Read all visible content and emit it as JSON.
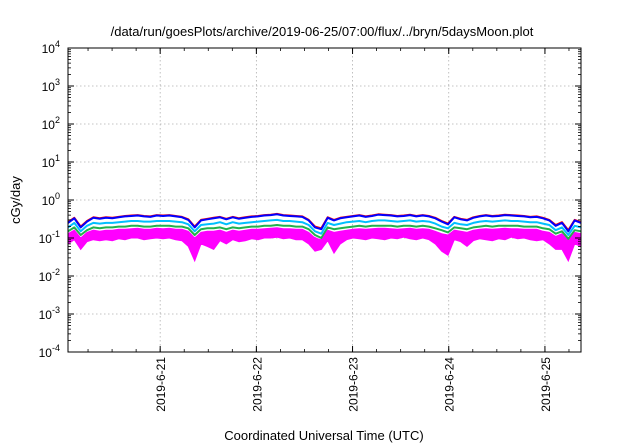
{
  "chart_data": {
    "type": "line",
    "title": "/data/run/goesPlots/archive/2019-06-25/07:00/flux/../bryn/5daysMoon.plot",
    "xlabel": "Coordinated Universal Time (UTC)",
    "ylabel": "cGy/day",
    "y_scale": "log",
    "ylim": [
      0.0001,
      10000
    ],
    "y_ticks": [
      {
        "base": "10",
        "exp": "-4"
      },
      {
        "base": "10",
        "exp": "-3"
      },
      {
        "base": "10",
        "exp": "-2"
      },
      {
        "base": "10",
        "exp": "-1"
      },
      {
        "base": "10",
        "exp": "0"
      },
      {
        "base": "10",
        "exp": "1"
      },
      {
        "base": "10",
        "exp": "2"
      },
      {
        "base": "10",
        "exp": "3"
      },
      {
        "base": "10",
        "exp": "4"
      }
    ],
    "x_range": [
      "2019-06-20 01:00",
      "2019-06-25 09:00"
    ],
    "x_ticks": [
      "2019-6-21",
      "2019-6-22",
      "2019-6-23",
      "2019-6-24",
      "2019-6-25"
    ],
    "grid": true,
    "legend": "none",
    "series": [
      {
        "color": "#ff00ff",
        "values": [
          0.085,
          0.11,
          0.07,
          0.1,
          0.11,
          0.105,
          0.11,
          0.11,
          0.125,
          0.12,
          0.125,
          0.13,
          0.12,
          0.125,
          0.13,
          0.125,
          0.13,
          0.12,
          0.125,
          0.11,
          0.1,
          0.11,
          0.1,
          0.095,
          0.12,
          0.105,
          0.12,
          0.11,
          0.115,
          0.125,
          0.12,
          0.125,
          0.13,
          0.135,
          0.125,
          0.13,
          0.12,
          0.125,
          0.11,
          0.1,
          0.075,
          0.12,
          0.09,
          0.12,
          0.125,
          0.13,
          0.125,
          0.12,
          0.13,
          0.125,
          0.12,
          0.13,
          0.125,
          0.135,
          0.125,
          0.12,
          0.13,
          0.12,
          0.11,
          0.1,
          0.1,
          0.125,
          0.12,
          0.11,
          0.12,
          0.13,
          0.125,
          0.12,
          0.13,
          0.125,
          0.14,
          0.13,
          0.135,
          0.125,
          0.12,
          0.13,
          0.11,
          0.1,
          0.1,
          0.06,
          0.11,
          0.1
        ]
      },
      {
        "color": "#ff0000",
        "values": [
          0.26,
          0.34,
          0.2,
          0.28,
          0.35,
          0.33,
          0.35,
          0.34,
          0.36,
          0.38,
          0.39,
          0.4,
          0.38,
          0.37,
          0.4,
          0.39,
          0.4,
          0.38,
          0.36,
          0.31,
          0.2,
          0.3,
          0.32,
          0.34,
          0.36,
          0.32,
          0.36,
          0.33,
          0.35,
          0.37,
          0.38,
          0.4,
          0.41,
          0.43,
          0.4,
          0.39,
          0.38,
          0.37,
          0.3,
          0.2,
          0.18,
          0.35,
          0.3,
          0.34,
          0.36,
          0.38,
          0.4,
          0.37,
          0.39,
          0.42,
          0.41,
          0.4,
          0.38,
          0.39,
          0.41,
          0.38,
          0.4,
          0.38,
          0.34,
          0.28,
          0.24,
          0.36,
          0.32,
          0.3,
          0.35,
          0.38,
          0.4,
          0.38,
          0.39,
          0.41,
          0.4,
          0.39,
          0.38,
          0.36,
          0.37,
          0.34,
          0.3,
          0.22,
          0.26,
          0.16,
          0.3,
          0.26
        ]
      },
      {
        "color": "#0000ff",
        "values": [
          0.25,
          0.33,
          0.19,
          0.27,
          0.34,
          0.32,
          0.34,
          0.33,
          0.35,
          0.37,
          0.38,
          0.39,
          0.37,
          0.36,
          0.39,
          0.38,
          0.39,
          0.37,
          0.35,
          0.3,
          0.19,
          0.29,
          0.31,
          0.33,
          0.35,
          0.31,
          0.35,
          0.32,
          0.34,
          0.36,
          0.37,
          0.39,
          0.4,
          0.42,
          0.39,
          0.38,
          0.37,
          0.36,
          0.29,
          0.19,
          0.17,
          0.34,
          0.29,
          0.33,
          0.35,
          0.37,
          0.39,
          0.36,
          0.38,
          0.41,
          0.4,
          0.39,
          0.37,
          0.38,
          0.4,
          0.37,
          0.39,
          0.37,
          0.33,
          0.27,
          0.23,
          0.35,
          0.31,
          0.29,
          0.34,
          0.37,
          0.39,
          0.37,
          0.38,
          0.4,
          0.39,
          0.38,
          0.37,
          0.35,
          0.36,
          0.33,
          0.29,
          0.21,
          0.25,
          0.15,
          0.29,
          0.25
        ]
      },
      {
        "color": "#00bfff",
        "values": [
          0.19,
          0.25,
          0.15,
          0.21,
          0.25,
          0.24,
          0.25,
          0.25,
          0.26,
          0.27,
          0.28,
          0.28,
          0.27,
          0.27,
          0.28,
          0.28,
          0.28,
          0.27,
          0.26,
          0.23,
          0.15,
          0.22,
          0.23,
          0.24,
          0.26,
          0.23,
          0.26,
          0.24,
          0.25,
          0.26,
          0.27,
          0.28,
          0.29,
          0.3,
          0.28,
          0.28,
          0.27,
          0.26,
          0.22,
          0.15,
          0.13,
          0.25,
          0.22,
          0.24,
          0.26,
          0.27,
          0.28,
          0.26,
          0.28,
          0.29,
          0.29,
          0.28,
          0.27,
          0.28,
          0.29,
          0.27,
          0.28,
          0.27,
          0.24,
          0.2,
          0.18,
          0.25,
          0.23,
          0.22,
          0.25,
          0.27,
          0.28,
          0.27,
          0.28,
          0.29,
          0.28,
          0.28,
          0.27,
          0.26,
          0.26,
          0.24,
          0.22,
          0.16,
          0.19,
          0.12,
          0.21,
          0.19
        ]
      },
      {
        "color": "#22b14c",
        "values": [
          0.15,
          0.19,
          0.12,
          0.16,
          0.19,
          0.18,
          0.19,
          0.19,
          0.2,
          0.2,
          0.21,
          0.21,
          0.2,
          0.2,
          0.21,
          0.21,
          0.21,
          0.2,
          0.2,
          0.18,
          0.12,
          0.17,
          0.18,
          0.18,
          0.19,
          0.17,
          0.19,
          0.18,
          0.19,
          0.2,
          0.2,
          0.21,
          0.21,
          0.22,
          0.21,
          0.21,
          0.2,
          0.2,
          0.17,
          0.12,
          0.1,
          0.19,
          0.17,
          0.18,
          0.19,
          0.2,
          0.21,
          0.2,
          0.21,
          0.21,
          0.21,
          0.21,
          0.2,
          0.21,
          0.21,
          0.2,
          0.21,
          0.2,
          0.18,
          0.16,
          0.14,
          0.19,
          0.18,
          0.17,
          0.19,
          0.2,
          0.21,
          0.2,
          0.21,
          0.21,
          0.21,
          0.21,
          0.2,
          0.2,
          0.2,
          0.18,
          0.17,
          0.13,
          0.15,
          0.095,
          0.16,
          0.15
        ]
      },
      {
        "color": "#ff00ff",
        "values": [
          0.12,
          0.15,
          0.09,
          0.13,
          0.15,
          0.14,
          0.15,
          0.15,
          0.16,
          0.16,
          0.165,
          0.17,
          0.16,
          0.16,
          0.17,
          0.165,
          0.17,
          0.16,
          0.16,
          0.14,
          0.09,
          0.13,
          0.14,
          0.14,
          0.15,
          0.13,
          0.15,
          0.14,
          0.15,
          0.16,
          0.16,
          0.165,
          0.17,
          0.175,
          0.165,
          0.165,
          0.16,
          0.16,
          0.13,
          0.09,
          0.08,
          0.15,
          0.13,
          0.14,
          0.15,
          0.16,
          0.165,
          0.16,
          0.165,
          0.17,
          0.17,
          0.165,
          0.16,
          0.165,
          0.17,
          0.16,
          0.165,
          0.16,
          0.14,
          0.12,
          0.11,
          0.15,
          0.14,
          0.13,
          0.15,
          0.16,
          0.165,
          0.16,
          0.165,
          0.17,
          0.165,
          0.165,
          0.16,
          0.16,
          0.16,
          0.14,
          0.13,
          0.1,
          0.12,
          0.075,
          0.13,
          0.12
        ]
      }
    ],
    "band": {
      "color": "#ff00ff",
      "upper": [
        0.13,
        0.16,
        0.1,
        0.14,
        0.16,
        0.15,
        0.16,
        0.16,
        0.17,
        0.17,
        0.175,
        0.18,
        0.17,
        0.17,
        0.18,
        0.175,
        0.18,
        0.17,
        0.17,
        0.15,
        0.1,
        0.14,
        0.15,
        0.15,
        0.16,
        0.14,
        0.16,
        0.15,
        0.16,
        0.17,
        0.17,
        0.175,
        0.18,
        0.185,
        0.175,
        0.175,
        0.17,
        0.17,
        0.14,
        0.1,
        0.09,
        0.16,
        0.14,
        0.15,
        0.16,
        0.17,
        0.175,
        0.17,
        0.175,
        0.18,
        0.18,
        0.175,
        0.17,
        0.175,
        0.18,
        0.17,
        0.175,
        0.17,
        0.15,
        0.13,
        0.12,
        0.16,
        0.15,
        0.14,
        0.16,
        0.17,
        0.175,
        0.17,
        0.175,
        0.18,
        0.175,
        0.175,
        0.17,
        0.17,
        0.17,
        0.15,
        0.14,
        0.11,
        0.13,
        0.085,
        0.14,
        0.13
      ],
      "lower": [
        0.07,
        0.09,
        0.05,
        0.08,
        0.09,
        0.085,
        0.09,
        0.085,
        0.095,
        0.09,
        0.1,
        0.1,
        0.09,
        0.095,
        0.1,
        0.095,
        0.1,
        0.09,
        0.085,
        0.06,
        0.025,
        0.07,
        0.06,
        0.05,
        0.085,
        0.07,
        0.09,
        0.08,
        0.085,
        0.095,
        0.09,
        0.1,
        0.1,
        0.105,
        0.095,
        0.1,
        0.09,
        0.09,
        0.07,
        0.045,
        0.05,
        0.085,
        0.04,
        0.07,
        0.09,
        0.1,
        0.095,
        0.09,
        0.1,
        0.095,
        0.09,
        0.1,
        0.095,
        0.105,
        0.095,
        0.09,
        0.1,
        0.09,
        0.07,
        0.045,
        0.035,
        0.09,
        0.08,
        0.06,
        0.085,
        0.095,
        0.09,
        0.085,
        0.095,
        0.09,
        0.105,
        0.095,
        0.1,
        0.09,
        0.085,
        0.09,
        0.07,
        0.05,
        0.05,
        0.025,
        0.07,
        0.06
      ]
    }
  }
}
